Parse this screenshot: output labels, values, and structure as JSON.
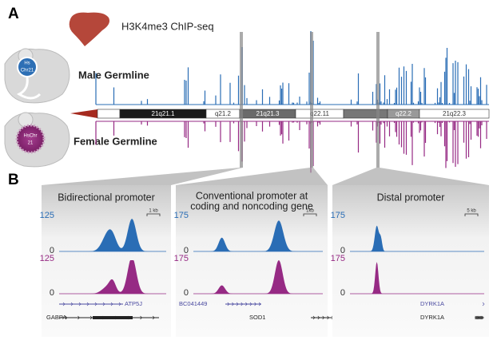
{
  "panel_a": {
    "label": "A",
    "title": "H3K4me3 ChIP-seq",
    "male": {
      "track": "Male Germline",
      "icon": [
        "Hs",
        "Chr21"
      ]
    },
    "female": {
      "track": "Female Germline",
      "icon": [
        "HsChr",
        "21"
      ]
    },
    "bands": [
      "21q21.1",
      "q21.2",
      "21q21.3",
      "q22.11",
      "q22.2",
      "21q22.3"
    ]
  },
  "panel_b": {
    "label": "B",
    "panels": [
      {
        "title": [
          "Bidirectional promoter"
        ],
        "scale": "1 kb",
        "male_max": 125,
        "male_min": 0,
        "female_max": 125,
        "female_min": 0,
        "genes": [
          "ATP5J",
          "GABPA"
        ]
      },
      {
        "title": [
          "Conventional promoter at",
          "coding and noncoding gene"
        ],
        "scale": "1kb",
        "male_max": 175,
        "male_min": 0,
        "female_max": 175,
        "female_min": 0,
        "genes": [
          "BC041449",
          "SOD1"
        ]
      },
      {
        "title": [
          "Distal promoter"
        ],
        "scale": "5 kb",
        "male_max": 175,
        "male_min": 0,
        "female_max": 175,
        "female_min": 0,
        "genes": [
          "DYRK1A",
          "DYRK1A"
        ]
      }
    ]
  }
}
